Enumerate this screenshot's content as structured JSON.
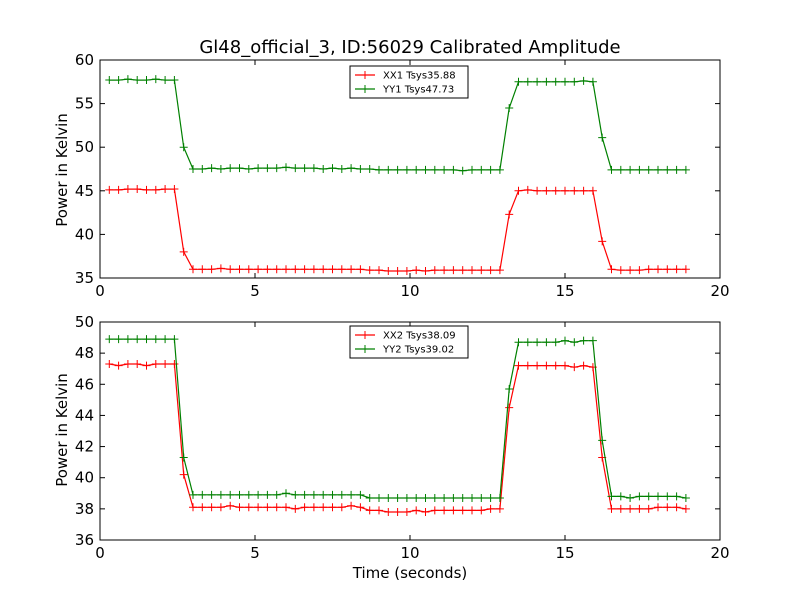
{
  "chart_data": [
    {
      "type": "line",
      "title": "Gl48_official_3, ID:56029 Calibrated Amplitude",
      "xlabel": "",
      "ylabel": "Power in Kelvin",
      "xlim": [
        0,
        20
      ],
      "ylim": [
        35,
        60
      ],
      "xticks": [
        "0",
        "5",
        "10",
        "15",
        "20"
      ],
      "yticks": [
        "35",
        "40",
        "45",
        "50",
        "55",
        "60"
      ],
      "grid": false,
      "legend_position": "top-center",
      "x": [
        0.3,
        0.6,
        0.9,
        1.2,
        1.5,
        1.8,
        2.1,
        2.4,
        2.7,
        3.0,
        3.3,
        3.6,
        3.9,
        4.2,
        4.5,
        4.8,
        5.1,
        5.4,
        5.7,
        6.0,
        6.3,
        6.6,
        6.9,
        7.2,
        7.5,
        7.8,
        8.1,
        8.4,
        8.7,
        9.0,
        9.3,
        9.6,
        9.9,
        10.2,
        10.5,
        10.8,
        11.1,
        11.4,
        11.7,
        12.0,
        12.3,
        12.6,
        12.9,
        13.2,
        13.5,
        13.8,
        14.1,
        14.4,
        14.7,
        15.0,
        15.3,
        15.6,
        15.9,
        16.2,
        16.5,
        16.8,
        17.1,
        17.4,
        17.7,
        18.0,
        18.3,
        18.6,
        18.9
      ],
      "series": [
        {
          "name": "XX1 Tsys35.88",
          "color": "#ff0000",
          "values": [
            45.1,
            45.1,
            45.2,
            45.2,
            45.1,
            45.1,
            45.2,
            45.2,
            38.0,
            36.0,
            36.0,
            36.0,
            36.1,
            36.0,
            36.0,
            36.0,
            36.0,
            36.0,
            36.0,
            36.0,
            36.0,
            36.0,
            36.0,
            36.0,
            36.0,
            36.0,
            36.0,
            36.0,
            35.9,
            35.9,
            35.8,
            35.8,
            35.8,
            35.9,
            35.8,
            35.9,
            35.9,
            35.9,
            35.9,
            35.9,
            35.9,
            35.9,
            35.9,
            42.3,
            45.0,
            45.1,
            45.0,
            45.0,
            45.0,
            45.0,
            45.0,
            45.0,
            45.0,
            39.2,
            36.0,
            35.9,
            35.9,
            35.9,
            36.0,
            36.0,
            36.0,
            36.0,
            36.0
          ]
        },
        {
          "name": "YY1 Tsys47.73",
          "color": "#008000",
          "values": [
            57.7,
            57.7,
            57.8,
            57.7,
            57.7,
            57.8,
            57.7,
            57.7,
            50.0,
            47.5,
            47.5,
            47.6,
            47.5,
            47.6,
            47.6,
            47.5,
            47.6,
            47.6,
            47.6,
            47.7,
            47.6,
            47.6,
            47.6,
            47.5,
            47.6,
            47.5,
            47.6,
            47.5,
            47.5,
            47.4,
            47.4,
            47.4,
            47.4,
            47.4,
            47.4,
            47.4,
            47.4,
            47.4,
            47.3,
            47.4,
            47.4,
            47.4,
            47.4,
            54.5,
            57.5,
            57.5,
            57.5,
            57.5,
            57.5,
            57.5,
            57.5,
            57.6,
            57.5,
            51.1,
            47.4,
            47.4,
            47.4,
            47.4,
            47.4,
            47.4,
            47.4,
            47.4,
            47.4
          ]
        }
      ]
    },
    {
      "type": "line",
      "title": "",
      "xlabel": "Time (seconds)",
      "ylabel": "Power in Kelvin",
      "xlim": [
        0,
        20
      ],
      "ylim": [
        36,
        50
      ],
      "xticks": [
        "0",
        "5",
        "10",
        "15",
        "20"
      ],
      "yticks": [
        "36",
        "38",
        "40",
        "42",
        "44",
        "46",
        "48",
        "50"
      ],
      "grid": false,
      "legend_position": "top-center",
      "x": [
        0.3,
        0.6,
        0.9,
        1.2,
        1.5,
        1.8,
        2.1,
        2.4,
        2.7,
        3.0,
        3.3,
        3.6,
        3.9,
        4.2,
        4.5,
        4.8,
        5.1,
        5.4,
        5.7,
        6.0,
        6.3,
        6.6,
        6.9,
        7.2,
        7.5,
        7.8,
        8.1,
        8.4,
        8.7,
        9.0,
        9.3,
        9.6,
        9.9,
        10.2,
        10.5,
        10.8,
        11.1,
        11.4,
        11.7,
        12.0,
        12.3,
        12.6,
        12.9,
        13.2,
        13.5,
        13.8,
        14.1,
        14.4,
        14.7,
        15.0,
        15.3,
        15.6,
        15.9,
        16.2,
        16.5,
        16.8,
        17.1,
        17.4,
        17.7,
        18.0,
        18.3,
        18.6,
        18.9
      ],
      "series": [
        {
          "name": "XX2 Tsys38.09",
          "color": "#ff0000",
          "values": [
            47.3,
            47.2,
            47.3,
            47.3,
            47.2,
            47.3,
            47.3,
            47.3,
            40.2,
            38.1,
            38.1,
            38.1,
            38.1,
            38.2,
            38.1,
            38.1,
            38.1,
            38.1,
            38.1,
            38.1,
            38.0,
            38.1,
            38.1,
            38.1,
            38.1,
            38.1,
            38.2,
            38.1,
            37.9,
            37.9,
            37.8,
            37.8,
            37.8,
            37.9,
            37.8,
            37.9,
            37.9,
            37.9,
            37.9,
            37.9,
            37.9,
            38.0,
            38.0,
            44.5,
            47.2,
            47.2,
            47.2,
            47.2,
            47.2,
            47.2,
            47.1,
            47.2,
            47.1,
            41.3,
            38.0,
            38.0,
            38.0,
            38.0,
            38.0,
            38.1,
            38.1,
            38.1,
            38.0
          ]
        },
        {
          "name": "YY2 Tsys39.02",
          "color": "#008000",
          "values": [
            48.9,
            48.9,
            48.9,
            48.9,
            48.9,
            48.9,
            48.9,
            48.9,
            41.3,
            38.9,
            38.9,
            38.9,
            38.9,
            38.9,
            38.9,
            38.9,
            38.9,
            38.9,
            38.9,
            39.0,
            38.9,
            38.9,
            38.9,
            38.9,
            38.9,
            38.9,
            38.9,
            38.9,
            38.7,
            38.7,
            38.7,
            38.7,
            38.7,
            38.7,
            38.7,
            38.7,
            38.7,
            38.7,
            38.7,
            38.7,
            38.7,
            38.7,
            38.7,
            45.7,
            48.7,
            48.7,
            48.7,
            48.7,
            48.7,
            48.8,
            48.7,
            48.8,
            48.8,
            42.4,
            38.8,
            38.8,
            38.7,
            38.8,
            38.8,
            38.8,
            38.8,
            38.8,
            38.7
          ]
        }
      ]
    }
  ]
}
